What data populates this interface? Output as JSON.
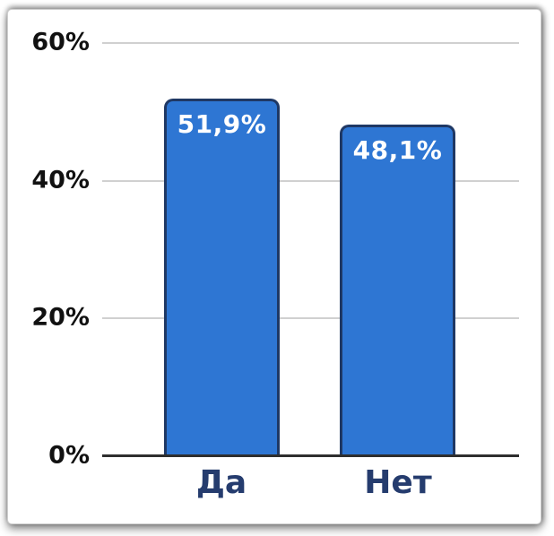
{
  "chart_data": {
    "type": "bar",
    "title": "",
    "xlabel": "",
    "ylabel": "",
    "categories": [
      "Да",
      "Нет"
    ],
    "values": [
      51.9,
      48.1
    ],
    "value_labels": [
      "51,9%",
      "48,1%"
    ],
    "ylim": [
      0,
      60
    ],
    "yticks": [
      0,
      20,
      40,
      60
    ],
    "ytick_labels": [
      "0%",
      "20%",
      "40%",
      "60%"
    ],
    "grid": true,
    "legend": false,
    "colors": {
      "bar_fill": "#2E76D3",
      "bar_border": "#1F3864",
      "value_label": "#FFFFFF",
      "category_label": "#253C6E",
      "tick_label": "#111111",
      "gridline": "#D0D0D0",
      "axis_line": "#2E2E2E",
      "card_background": "#FFFFFF"
    }
  }
}
